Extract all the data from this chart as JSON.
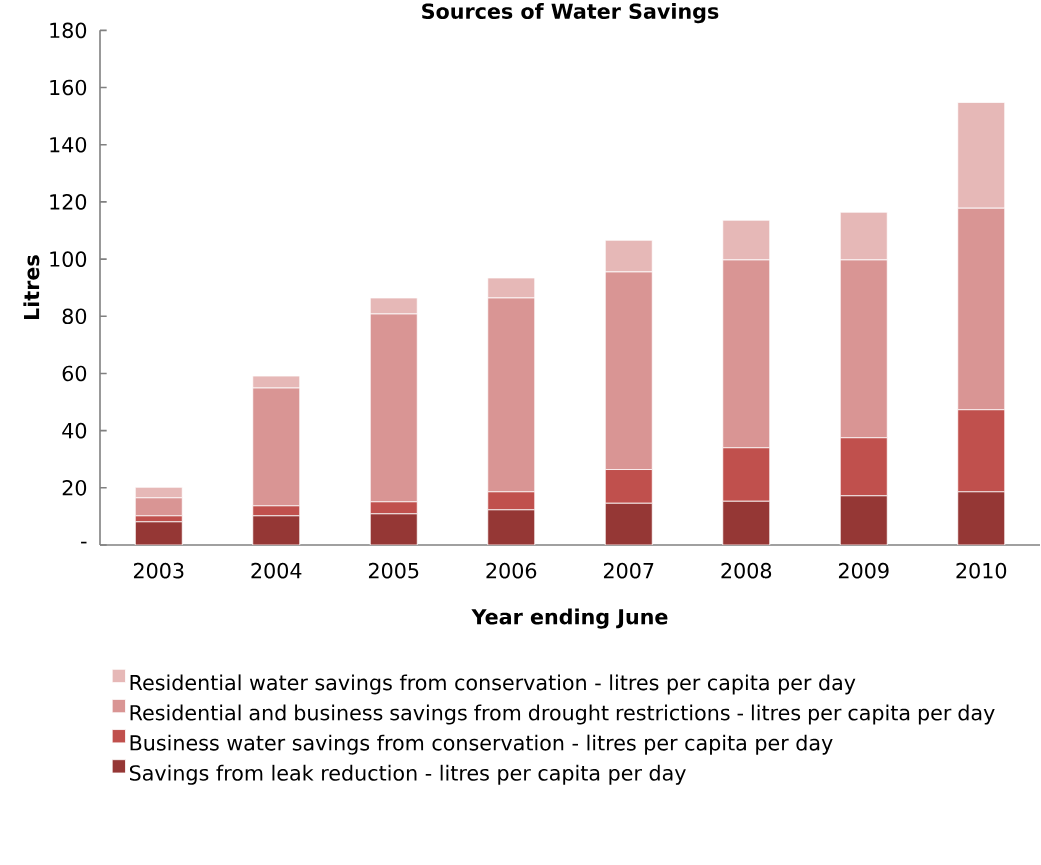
{
  "chart_data": {
    "type": "bar",
    "stacked": true,
    "title": "Sources of Water Savings",
    "xlabel": "Year ending June",
    "ylabel": "Litres",
    "categories": [
      "2003",
      "2004",
      "2005",
      "2006",
      "2007",
      "2008",
      "2009",
      "2010"
    ],
    "series": [
      {
        "name": "Savings from leak reduction  - litres per capita  per day",
        "color": "#953735",
        "values": [
          8.1,
          10.2,
          10.9,
          12.3,
          14.6,
          15.3,
          17.2,
          18.6
        ]
      },
      {
        "name": "Business water savings from conservation  - litres per capita  per day",
        "color": "#c0504d",
        "values": [
          2.1,
          3.5,
          4.2,
          6.3,
          11.8,
          18.7,
          20.3,
          28.7
        ]
      },
      {
        "name": "Residential  and business savings from drought restrictions  - litres per capita per day",
        "color": "#d99594",
        "values": [
          6.3,
          41.2,
          65.7,
          67.8,
          69.1,
          65.7,
          62.2,
          70.5
        ]
      },
      {
        "name": "Residential  water savings from conservation  - litres per capita  per day",
        "color": "#e6b8b7",
        "values": [
          3.7,
          4.2,
          5.6,
          7.0,
          11.1,
          13.9,
          16.7,
          37.0
        ]
      }
    ],
    "ylim": [
      0,
      180
    ],
    "yticks": [
      {
        "value": 0,
        "label": "-"
      },
      20,
      40,
      60,
      80,
      100,
      120,
      140,
      160,
      180
    ],
    "grid": false,
    "legend": "bottom"
  }
}
